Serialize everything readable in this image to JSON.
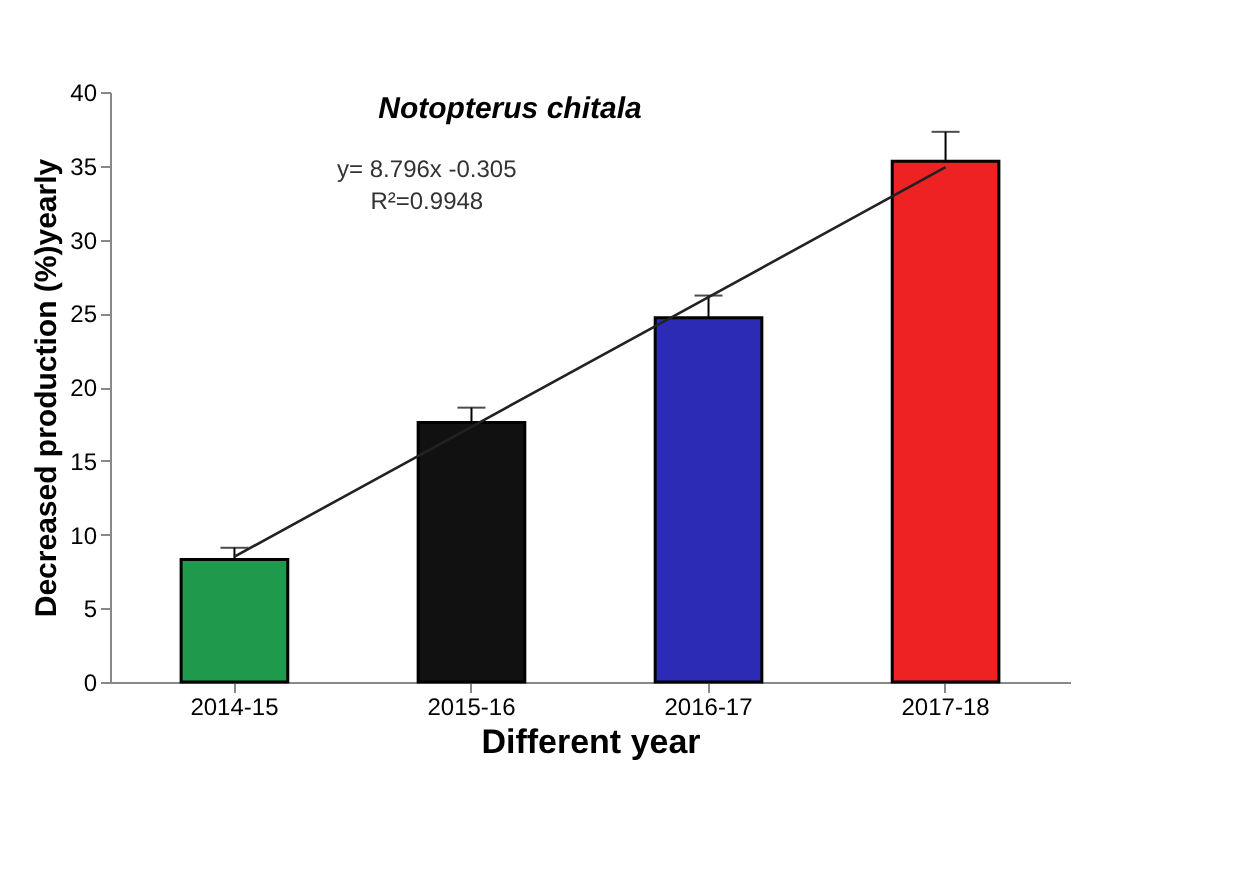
{
  "chart_data": {
    "type": "bar",
    "title": "Notopterus chitala",
    "xlabel": "Different year",
    "ylabel": "Decreased production  (%)yearly",
    "categories": [
      "2014-15",
      "2015-16",
      "2016-17",
      "2017-18"
    ],
    "series": [
      {
        "colors": [
          "#1f9a4c",
          "#111111",
          "#2b2bb5",
          "#ee2222"
        ],
        "values": [
          8.3,
          17.6,
          24.7,
          35.3
        ],
        "errors": [
          0.8,
          1.0,
          1.5,
          2.0
        ]
      },
      {
        "type": "line",
        "color": "#222222",
        "x": [
          "2014-15",
          "2015-16",
          "2016-17",
          "2017-18"
        ],
        "values": [
          8.5,
          17.3,
          26.1,
          34.9
        ]
      }
    ],
    "annotations": [
      "y= 8.796x -0.305",
      "R²=0.9948"
    ],
    "ylim": [
      0,
      40
    ],
    "yticks": [
      0,
      5,
      10,
      15,
      20,
      25,
      30,
      35,
      40
    ],
    "grid": false
  }
}
